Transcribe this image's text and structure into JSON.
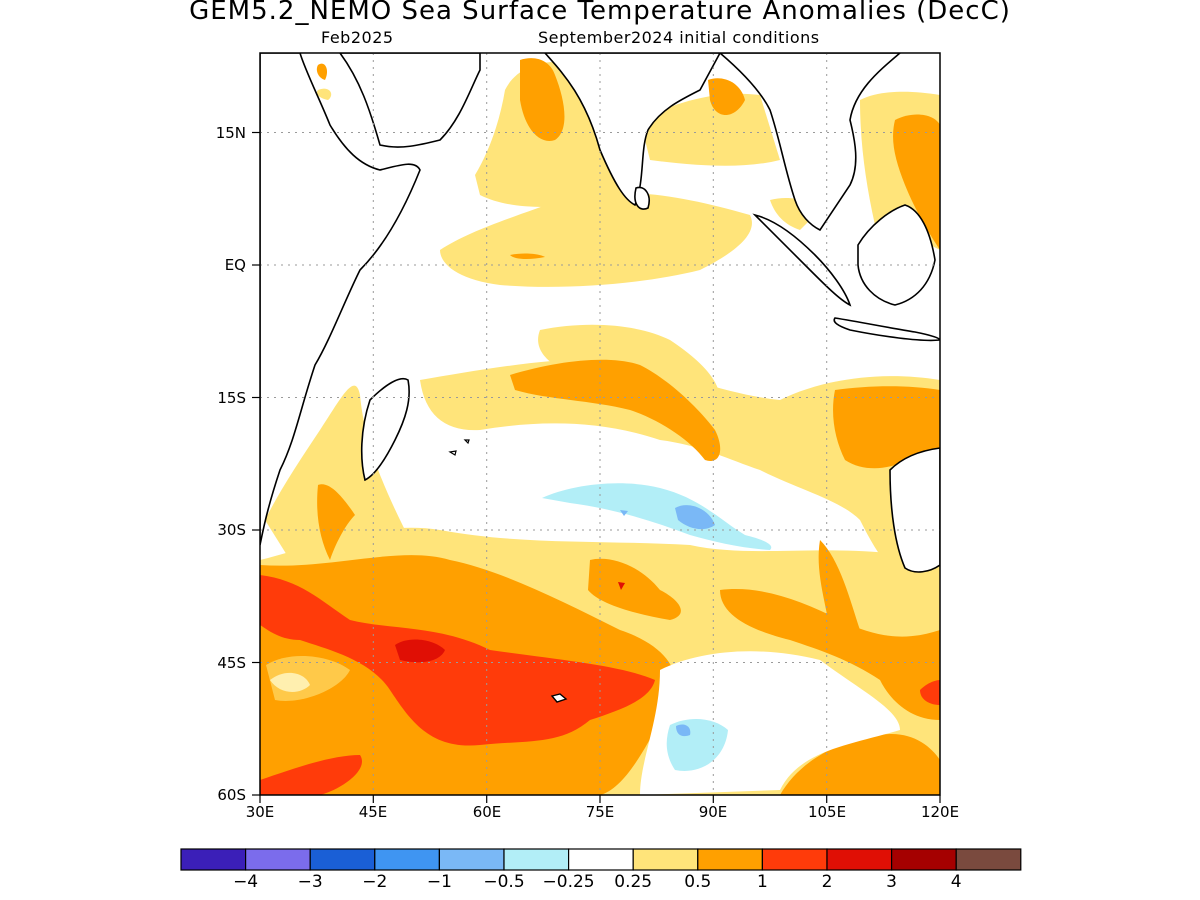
{
  "title": "GEM5.2_NEMO Sea Surface Temperature Anomalies (DecC)",
  "subtitle_left": "Feb2025",
  "subtitle_right": "September2024 initial conditions",
  "map": {
    "region": "Indian Ocean",
    "lon_range": [
      30,
      120
    ],
    "lat_range": [
      -60,
      24
    ],
    "y_ticks": [
      {
        "label": "15N",
        "lat": 15
      },
      {
        "label": "EQ",
        "lat": 0
      },
      {
        "label": "15S",
        "lat": -15
      },
      {
        "label": "30S",
        "lat": -30
      },
      {
        "label": "45S",
        "lat": -45
      },
      {
        "label": "60S",
        "lat": -60
      }
    ],
    "x_ticks": [
      {
        "label": "30E",
        "lon": 30
      },
      {
        "label": "45E",
        "lon": 45
      },
      {
        "label": "60E",
        "lon": 60
      },
      {
        "label": "75E",
        "lon": 75
      },
      {
        "label": "90E",
        "lon": 90
      },
      {
        "label": "105E",
        "lon": 105
      },
      {
        "label": "120E",
        "lon": 120
      }
    ],
    "grid": true
  },
  "colorbar": {
    "colors": [
      "#3b1fb8",
      "#7b6cec",
      "#1a5fd6",
      "#3f95f2",
      "#7ab8f6",
      "#b2eef7",
      "#ffffff",
      "#ffe47a",
      "#ffa000",
      "#ff3b0a",
      "#e00f05",
      "#a50000",
      "#7a4a3e"
    ],
    "labels": [
      "−4",
      "−3",
      "−2",
      "−1",
      "−0.5",
      "−0.25",
      "0.25",
      "0.5",
      "1",
      "2",
      "3",
      "4"
    ]
  }
}
